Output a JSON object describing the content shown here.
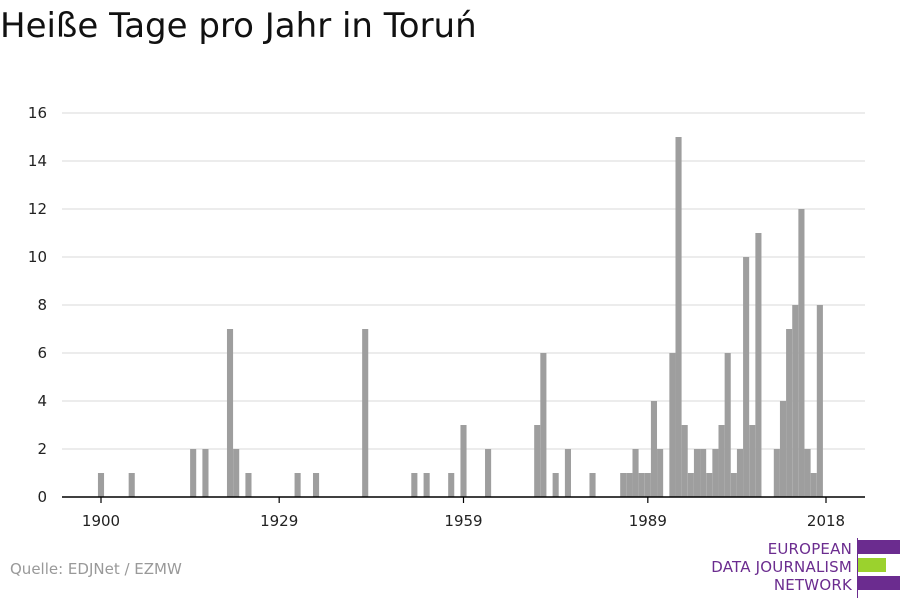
{
  "title": "Heiße Tage pro Jahr in Toruń",
  "source": "Quelle: EDJNet / EZMW",
  "logo": {
    "lines": [
      "EUROPEAN",
      "DATA JOURNALISM",
      "NETWORK"
    ],
    "colors": {
      "purple": "#6b2c8f",
      "green": "#9bd22d"
    }
  },
  "colors": {
    "bar": "#9e9e9e",
    "grid": "#d9d9d9",
    "axis": "#000000",
    "tick_text": "#222222"
  },
  "chart_data": {
    "type": "bar",
    "title": "Heiße Tage pro Jahr in Toruń",
    "xlabel": "",
    "ylabel": "",
    "xlim": [
      1894,
      2024
    ],
    "ylim": [
      0,
      16
    ],
    "x_ticks": [
      1900,
      1929,
      1959,
      1989,
      2018
    ],
    "y_ticks": [
      0,
      2,
      4,
      6,
      8,
      10,
      12,
      14,
      16
    ],
    "grid": true,
    "legend": "none",
    "series": [
      {
        "x": [
          1900,
          1905,
          1915,
          1917,
          1921,
          1922,
          1924,
          1932,
          1935,
          1943,
          1951,
          1953,
          1957,
          1959,
          1963,
          1971,
          1972,
          1974,
          1976,
          1980,
          1985,
          1986,
          1987,
          1988,
          1989,
          1990,
          1991,
          1993,
          1994,
          1995,
          1996,
          1997,
          1998,
          1999,
          2000,
          2001,
          2002,
          2003,
          2004,
          2005,
          2006,
          2007,
          2010,
          2011,
          2012,
          2013,
          2014,
          2015,
          2016,
          2017,
          2018,
          2019
        ],
        "values": [
          1,
          1,
          2,
          2,
          7,
          2,
          1,
          1,
          1,
          7,
          1,
          1,
          1,
          3,
          2,
          3,
          6,
          1,
          2,
          1,
          1,
          1,
          2,
          1,
          1,
          4,
          2,
          6,
          15,
          3,
          1,
          2,
          2,
          1,
          2,
          3,
          6,
          1,
          2,
          10,
          3,
          11,
          2,
          4,
          7,
          8,
          12,
          2,
          1,
          8,
          0,
          0
        ]
      }
    ]
  }
}
